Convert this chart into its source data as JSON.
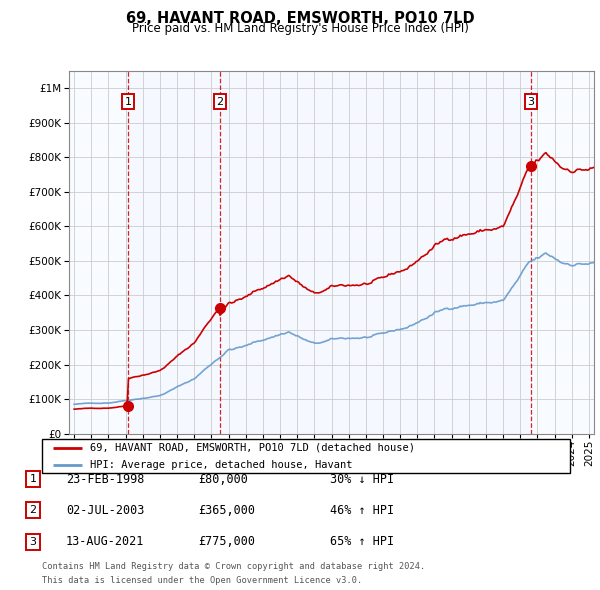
{
  "title": "69, HAVANT ROAD, EMSWORTH, PO10 7LD",
  "subtitle": "Price paid vs. HM Land Registry's House Price Index (HPI)",
  "legend_line1": "69, HAVANT ROAD, EMSWORTH, PO10 7LD (detached house)",
  "legend_line2": "HPI: Average price, detached house, Havant",
  "footer_line1": "Contains HM Land Registry data © Crown copyright and database right 2024.",
  "footer_line2": "This data is licensed under the Open Government Licence v3.0.",
  "sales": [
    {
      "num": 1,
      "date": "23-FEB-1998",
      "price": 80000,
      "pct": "30%",
      "dir": "↓",
      "year": 1998.14
    },
    {
      "num": 2,
      "date": "02-JUL-2003",
      "price": 365000,
      "pct": "46%",
      "dir": "↑",
      "year": 2003.5
    },
    {
      "num": 3,
      "date": "13-AUG-2021",
      "price": 775000,
      "pct": "65%",
      "dir": "↑",
      "year": 2021.62
    }
  ],
  "price_color": "#cc0000",
  "hpi_color": "#6699cc",
  "shade_color": "#ddeeff",
  "vline_color": "#cc0000",
  "box_color": "#cc0000",
  "grid_color": "#cccccc",
  "background_color": "#ffffff",
  "ylim": [
    0,
    1050000
  ],
  "xlim_start": 1994.7,
  "xlim_end": 2025.3
}
